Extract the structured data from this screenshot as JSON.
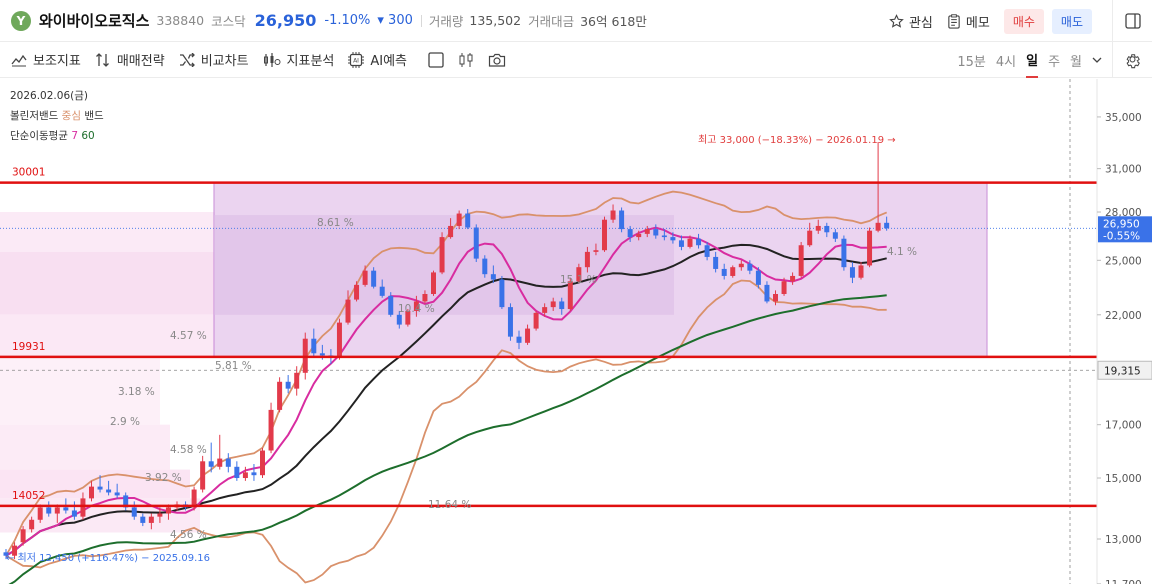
{
  "header": {
    "logo_letter": "Y",
    "name": "와이바이오로직스",
    "code": "338840",
    "market": "코스닥",
    "price": "26,950",
    "change_pct": "-1.10%",
    "change_abs": "▾ 300",
    "volume_label": "거래량",
    "volume_value": "135,502",
    "amount_label": "거래대금",
    "amount_value": "36억 618만",
    "watch_label": "관심",
    "memo_label": "메모",
    "buy_label": "매수",
    "sell_label": "매도"
  },
  "toolbar": {
    "tools": [
      "보조지표",
      "매매전략",
      "비교차트",
      "지표분석",
      "AI예측"
    ],
    "periods": [
      "15분",
      "4시",
      "일",
      "주",
      "월"
    ],
    "active_period": "일"
  },
  "legend": {
    "date": "2026.02.06(금)",
    "bollinger": "볼린저밴드",
    "bollinger_center": "중심",
    "bollinger_band": "밴드",
    "ma_label": "단순이동평균",
    "ma_short": "7",
    "ma_long": "60"
  },
  "colors": {
    "up": "#e23a4a",
    "down": "#3a72e8",
    "ma7": "#d82ca0",
    "ma60": "#1d6e2c",
    "bb_center": "#222222",
    "bb_band": "#d9916b",
    "level_line": "#e01010"
  },
  "annotations": {
    "high": "최고 33,000 (−18.33%) − 2026.01.19 →",
    "low": "← 최저 12,450 (+116.47%) − 2025.09.16",
    "level_30001": "30001",
    "level_19931": "19931",
    "level_14052": "14052",
    "pcts": [
      "8.61 %",
      "4.57 %",
      "5.81 %",
      "3.18 %",
      "2.9 %",
      "4.58 %",
      "3.92 %",
      "4.56 %",
      "11.64 %",
      "15.1 %",
      "10.4 %",
      "4.1 %"
    ]
  },
  "y_axis": {
    "ticks": [
      "35,000",
      "31,000",
      "28,000",
      "25,000",
      "22,000",
      "19,315",
      "17,000",
      "15,000",
      "13,000",
      "11,700"
    ],
    "current_price": "26,950",
    "current_pct": "-0.55%",
    "crosshair_price": "19,315"
  },
  "chart_data": {
    "type": "candlestick",
    "y_scale": "log",
    "candles": [
      [
        12600,
        12700,
        12400,
        12500
      ],
      [
        12500,
        12900,
        12400,
        12800
      ],
      [
        12900,
        13400,
        12800,
        13300
      ],
      [
        13300,
        13700,
        13200,
        13600
      ],
      [
        13600,
        14100,
        13500,
        14000
      ],
      [
        14000,
        14200,
        13700,
        13800
      ],
      [
        13800,
        14100,
        13500,
        14000
      ],
      [
        14000,
        14300,
        13800,
        13900
      ],
      [
        13900,
        14200,
        13600,
        13700
      ],
      [
        13700,
        14500,
        13600,
        14300
      ],
      [
        14300,
        14900,
        14200,
        14700
      ],
      [
        14700,
        15100,
        14500,
        14600
      ],
      [
        14600,
        14900,
        14400,
        14500
      ],
      [
        14500,
        14800,
        14300,
        14400
      ],
      [
        14400,
        14500,
        13900,
        14000
      ],
      [
        14000,
        14200,
        13600,
        13700
      ],
      [
        13700,
        13800,
        13400,
        13500
      ],
      [
        13500,
        13800,
        13300,
        13700
      ],
      [
        13700,
        14000,
        13500,
        13800
      ],
      [
        13800,
        14100,
        13600,
        14000
      ],
      [
        14000,
        14200,
        13900,
        14100
      ],
      [
        14100,
        14200,
        13900,
        14000
      ],
      [
        14000,
        14700,
        13900,
        14600
      ],
      [
        14600,
        15800,
        14500,
        15600
      ],
      [
        15600,
        16300,
        15200,
        15400
      ],
      [
        15400,
        16600,
        15300,
        15700
      ],
      [
        15700,
        15900,
        15200,
        15400
      ],
      [
        15400,
        15600,
        14900,
        15000
      ],
      [
        15000,
        15400,
        14900,
        15200
      ],
      [
        15200,
        15500,
        14900,
        15100
      ],
      [
        15100,
        16100,
        15000,
        16000
      ],
      [
        16000,
        17900,
        15900,
        17600
      ],
      [
        17600,
        19000,
        17500,
        18800
      ],
      [
        18800,
        19100,
        18300,
        18500
      ],
      [
        18500,
        19500,
        18200,
        19200
      ],
      [
        19200,
        21100,
        18900,
        20800
      ],
      [
        20800,
        21300,
        19900,
        20100
      ],
      [
        20100,
        20500,
        19800,
        20000
      ],
      [
        20000,
        20300,
        19600,
        19900
      ],
      [
        19900,
        21800,
        19800,
        21600
      ],
      [
        21600,
        23300,
        21500,
        22800
      ],
      [
        22800,
        23800,
        22700,
        23600
      ],
      [
        23600,
        24700,
        23500,
        24400
      ],
      [
        24400,
        24600,
        23400,
        23500
      ],
      [
        23500,
        23900,
        22900,
        23000
      ],
      [
        23000,
        23200,
        21900,
        22000
      ],
      [
        22000,
        22200,
        21300,
        21500
      ],
      [
        21500,
        22300,
        21400,
        22200
      ],
      [
        22200,
        23000,
        21900,
        22700
      ],
      [
        22700,
        23300,
        22600,
        23100
      ],
      [
        23100,
        24400,
        23000,
        24300
      ],
      [
        24300,
        26700,
        24200,
        26400
      ],
      [
        26400,
        27600,
        26300,
        27100
      ],
      [
        27100,
        28100,
        26900,
        27900
      ],
      [
        27900,
        28200,
        26900,
        27000
      ],
      [
        27000,
        27200,
        24900,
        25100
      ],
      [
        25100,
        25300,
        24000,
        24200
      ],
      [
        24200,
        24700,
        23700,
        23900
      ],
      [
        23900,
        24100,
        22300,
        22400
      ],
      [
        22400,
        22600,
        20700,
        20900
      ],
      [
        20900,
        21200,
        20300,
        20600
      ],
      [
        20600,
        21500,
        20500,
        21300
      ],
      [
        21300,
        22200,
        21200,
        22100
      ],
      [
        22100,
        22600,
        21900,
        22400
      ],
      [
        22400,
        22900,
        22200,
        22700
      ],
      [
        22700,
        22900,
        22000,
        22300
      ],
      [
        22300,
        24000,
        22200,
        23800
      ],
      [
        23800,
        24800,
        23700,
        24600
      ],
      [
        24600,
        25800,
        24300,
        25500
      ],
      [
        25500,
        26000,
        25300,
        25600
      ],
      [
        25600,
        27700,
        25500,
        27500
      ],
      [
        27500,
        28500,
        27300,
        28100
      ],
      [
        28100,
        28300,
        26700,
        26900
      ],
      [
        26900,
        27100,
        26100,
        26400
      ],
      [
        26400,
        26800,
        26200,
        26600
      ],
      [
        26600,
        27100,
        26400,
        26900
      ],
      [
        26900,
        27200,
        26300,
        26500
      ],
      [
        26500,
        26900,
        26200,
        26400
      ],
      [
        26400,
        26700,
        26000,
        26200
      ],
      [
        26200,
        26500,
        25600,
        25800
      ],
      [
        25800,
        26500,
        25700,
        26300
      ],
      [
        26300,
        26600,
        25700,
        25900
      ],
      [
        25900,
        26100,
        25000,
        25200
      ],
      [
        25200,
        25500,
        24300,
        24500
      ],
      [
        24500,
        24800,
        23900,
        24100
      ],
      [
        24100,
        24700,
        24000,
        24600
      ],
      [
        24600,
        25000,
        24400,
        24800
      ],
      [
        24800,
        25000,
        24200,
        24400
      ],
      [
        24400,
        24600,
        23400,
        23600
      ],
      [
        23600,
        23800,
        22600,
        22700
      ],
      [
        22700,
        23300,
        22500,
        23100
      ],
      [
        23100,
        24000,
        23000,
        23800
      ],
      [
        23800,
        24300,
        23600,
        24100
      ],
      [
        24100,
        26100,
        24000,
        25900
      ],
      [
        25900,
        27300,
        25800,
        26800
      ],
      [
        26800,
        27500,
        26600,
        27100
      ],
      [
        27100,
        27300,
        26400,
        26700
      ],
      [
        26700,
        26900,
        26100,
        26300
      ],
      [
        26300,
        26500,
        24400,
        24600
      ],
      [
        24600,
        24900,
        23700,
        24000
      ],
      [
        24000,
        24900,
        23900,
        24700
      ],
      [
        24700,
        27000,
        24600,
        26800
      ],
      [
        26800,
        33000,
        26700,
        27300
      ],
      [
        27300,
        27700,
        26800,
        26950
      ]
    ],
    "levels": [
      30001,
      19931,
      14052
    ],
    "high_label_price": 33000,
    "low_label_price": 12450
  }
}
